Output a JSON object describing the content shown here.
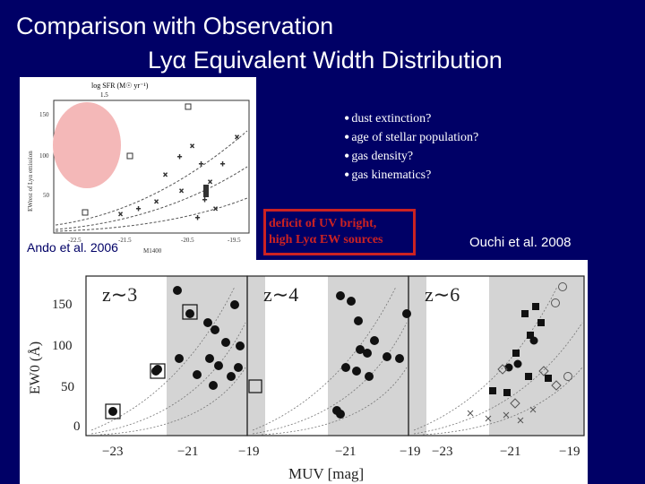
{
  "slide": {
    "title_line1": "Comparison with Observation",
    "title_line2": "Lyα Equivalent Width Distribution",
    "bullets": [
      "dust extinction?",
      "age of stellar population?",
      "gas density?",
      "gas kinematics?"
    ],
    "deficit_box": [
      "deficit of UV bright,",
      "high Lyα EW sources"
    ],
    "ouchi_citation": "Ouchi et al. 2008",
    "background_color": "#000066",
    "accent_color": "#cc2222"
  },
  "top_plot": {
    "citation": "Ando et al. 2006",
    "top_axis_label": "log SFR (M☉ yr⁻¹)",
    "top_tick": "1.5",
    "y_axis_label": "EWrest of Lyα emission",
    "y_ticks": [
      "150",
      "100",
      "50"
    ],
    "x_ticks": [
      "-22.5",
      "-21.5",
      "-20.5",
      "-19.5"
    ],
    "x_axis_label": "M1400",
    "highlight_color": "#f4b8b8"
  },
  "bottom_plot": {
    "panels": [
      "z∼3",
      "z∼4",
      "z∼6"
    ],
    "y_axis_label": "EW0 (Å)",
    "y_ticks": [
      "150",
      "100",
      "50",
      "0"
    ],
    "x_ticks": [
      "−23",
      "−21",
      "−19",
      "−21",
      "−19",
      "−23",
      "−21",
      "−19"
    ],
    "x_axis_label": "MUV [mag]",
    "shade_color": "#d4d4d4"
  }
}
